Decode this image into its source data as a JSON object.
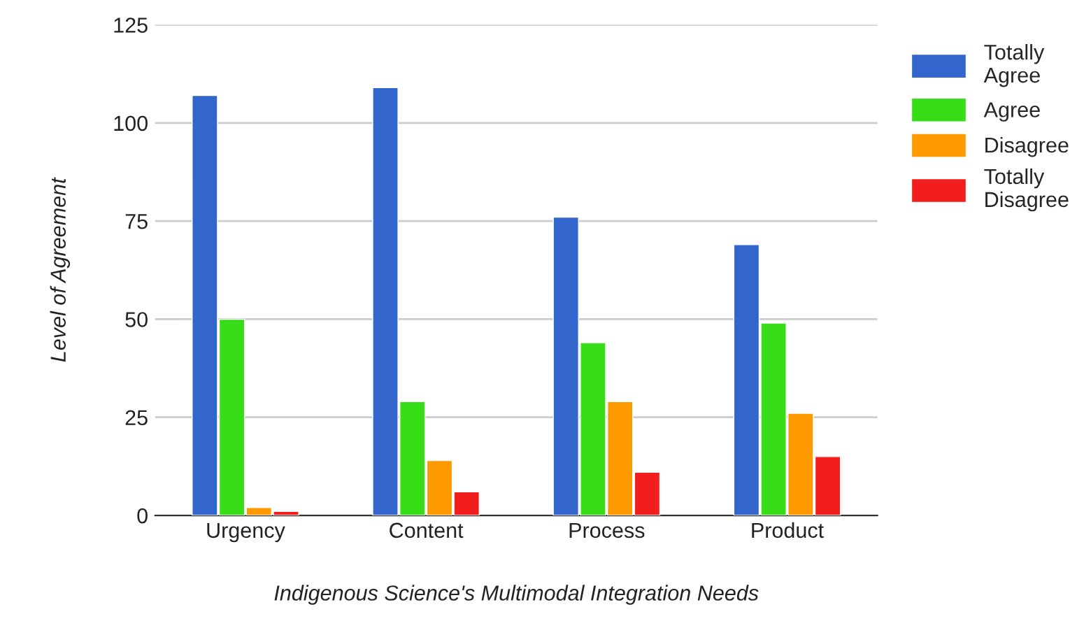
{
  "chart_data": {
    "type": "bar",
    "xlabel": "Indigenous Science's Multimodal Integration Needs",
    "ylabel": "Level of Agreement",
    "categories": [
      "Urgency",
      "Content",
      "Process",
      "Product"
    ],
    "series": [
      {
        "name": "Totally Agree",
        "color": "#3366cc",
        "values": [
          107,
          109,
          76,
          69
        ]
      },
      {
        "name": "Agree",
        "color": "#37dd17",
        "values": [
          50,
          29,
          44,
          49
        ]
      },
      {
        "name": "Disagree",
        "color": "#ff9900",
        "values": [
          2,
          14,
          29,
          26
        ]
      },
      {
        "name": "Totally Disagree",
        "color": "#f21e1e",
        "values": [
          1,
          6,
          11,
          15
        ]
      }
    ],
    "ylim": [
      0,
      125
    ],
    "yticks": [
      0,
      25,
      50,
      75,
      100,
      125
    ],
    "grid": "y",
    "legend": "top right"
  }
}
